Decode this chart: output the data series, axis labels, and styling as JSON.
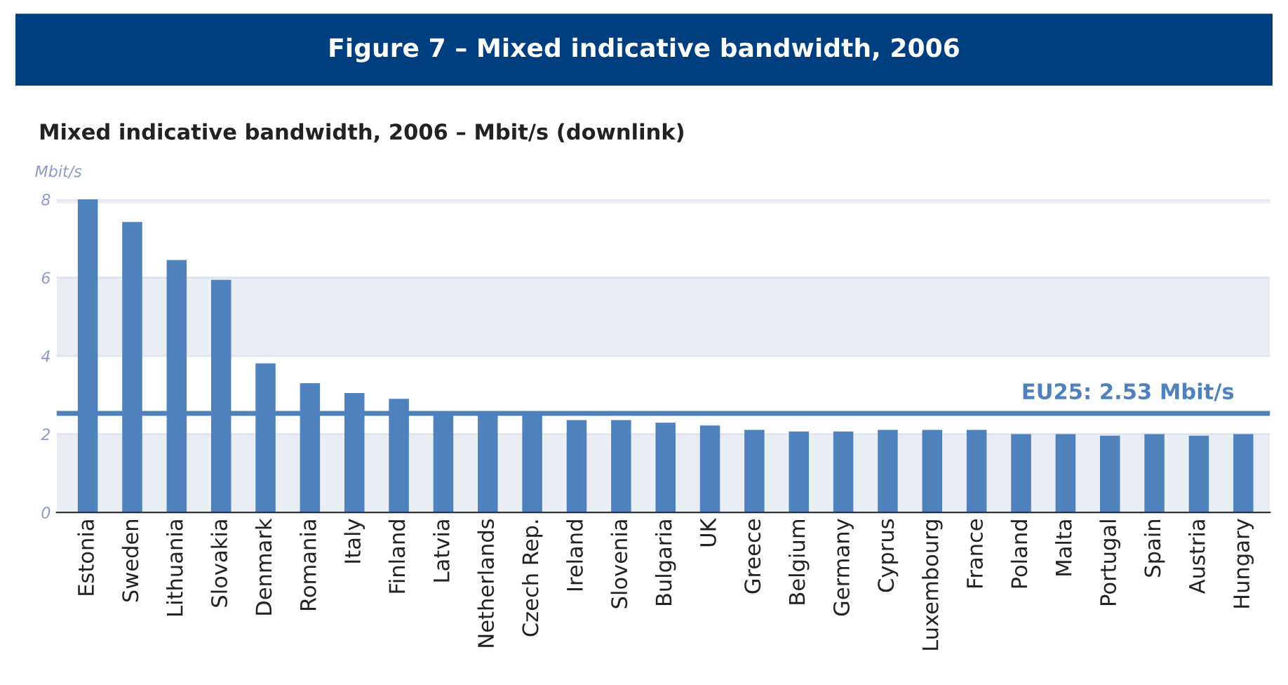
{
  "chart_data": {
    "type": "bar",
    "title": "Figure 7 – Mixed indicative bandwidth, 2006",
    "subtitle": "Mixed indicative bandwidth, 2006 – Mbit/s (downlink)",
    "ylabel": "Mbit/s",
    "categories": [
      "Estonia",
      "Sweden",
      "Lithuania",
      "Slovakia",
      "Denmark",
      "Romania",
      "Italy",
      "Finland",
      "Latvia",
      "Netherlands",
      "Czech Rep.",
      "Ireland",
      "Slovenia",
      "Bulgaria",
      "UK",
      "Greece",
      "Belgium",
      "Germany",
      "Cyprus",
      "Luxembourg",
      "France",
      "Poland",
      "Malta",
      "Portugal",
      "Spain",
      "Austria",
      "Hungary"
    ],
    "values": [
      8.0,
      7.42,
      6.45,
      5.94,
      3.81,
      3.3,
      3.05,
      2.9,
      2.5,
      2.5,
      2.5,
      2.36,
      2.36,
      2.29,
      2.22,
      2.11,
      2.07,
      2.07,
      2.11,
      2.11,
      2.11,
      2.0,
      2.0,
      1.96,
      2.0,
      1.96,
      2.0
    ],
    "color": "#4f81bd",
    "ylim": [
      0,
      8
    ],
    "yticks": [
      0,
      2,
      4,
      6,
      8
    ],
    "grid": "y",
    "ref_lines": [
      {
        "axis": "y",
        "value": 2.53,
        "label": "EU25: 2.53 Mbit/s",
        "color": "#4f81bd"
      }
    ]
  }
}
